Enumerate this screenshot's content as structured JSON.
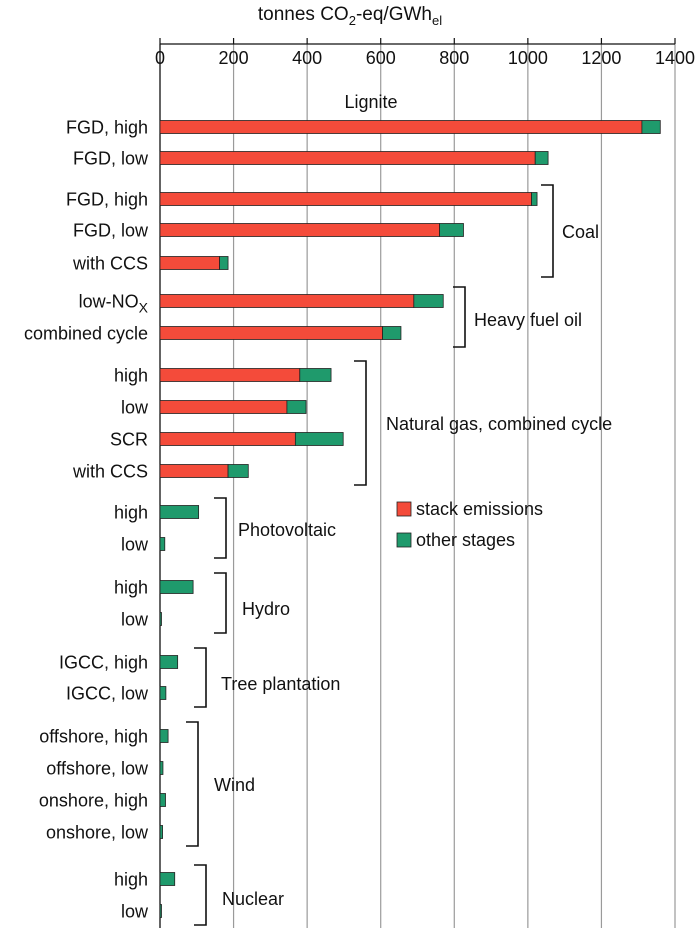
{
  "chart_data": {
    "type": "bar",
    "orientation": "horizontal",
    "stacked": true,
    "title": "",
    "xlabel": "tonnes CO2-eq/GWhel",
    "xlabel_main": "tonnes CO",
    "xlabel_sub1": "2",
    "xlabel_mid": "-eq/GWh",
    "xlabel_sub2": "el",
    "xlim": [
      0,
      1400
    ],
    "xticks": [
      0,
      200,
      400,
      600,
      800,
      1000,
      1200,
      1400
    ],
    "grid": "vertical",
    "legend_position": "center-right",
    "series": [
      {
        "name": "stack emissions",
        "color": "#f44b3a"
      },
      {
        "name": "other stages",
        "color": "#1f9a6c"
      }
    ],
    "groups": [
      {
        "name": "Lignite",
        "items": [
          {
            "label": "FGD, high",
            "stack": 1310,
            "other": 50
          },
          {
            "label": "FGD, low",
            "stack": 1020,
            "other": 35
          }
        ]
      },
      {
        "name": "Coal",
        "items": [
          {
            "label": "FGD, high",
            "stack": 1010,
            "other": 15
          },
          {
            "label": "FGD, low",
            "stack": 760,
            "other": 65
          },
          {
            "label": "with CCS",
            "stack": 162,
            "other": 23
          }
        ]
      },
      {
        "name": "Heavy fuel oil",
        "items": [
          {
            "label": "low-NO",
            "label_sub": "X",
            "stack": 690,
            "other": 80
          },
          {
            "label": "combined cycle",
            "stack": 605,
            "other": 50
          }
        ]
      },
      {
        "name": "Natural gas, combined cycle",
        "items": [
          {
            "label": "high",
            "stack": 380,
            "other": 85
          },
          {
            "label": "low",
            "stack": 345,
            "other": 52
          },
          {
            "label": "SCR",
            "stack": 368,
            "other": 130
          },
          {
            "label": "with CCS",
            "stack": 185,
            "other": 55
          }
        ]
      },
      {
        "name": "Photovoltaic",
        "items": [
          {
            "label": "high",
            "stack": 0,
            "other": 105
          },
          {
            "label": "low",
            "stack": 0,
            "other": 13
          }
        ]
      },
      {
        "name": "Hydro",
        "items": [
          {
            "label": "high",
            "stack": 0,
            "other": 90
          },
          {
            "label": "low",
            "stack": 0,
            "other": 4
          }
        ]
      },
      {
        "name": "Tree plantation",
        "items": [
          {
            "label": "IGCC, high",
            "stack": 0,
            "other": 48
          },
          {
            "label": "IGCC, low",
            "stack": 0,
            "other": 16
          }
        ]
      },
      {
        "name": "Wind",
        "items": [
          {
            "label": "offshore, high",
            "stack": 0,
            "other": 22
          },
          {
            "label": "offshore, low",
            "stack": 0,
            "other": 8
          },
          {
            "label": "onshore, high",
            "stack": 0,
            "other": 15
          },
          {
            "label": "onshore, low",
            "stack": 0,
            "other": 7
          }
        ]
      },
      {
        "name": "Nuclear",
        "items": [
          {
            "label": "high",
            "stack": 0,
            "other": 40
          },
          {
            "label": "low",
            "stack": 0,
            "other": 4
          }
        ]
      }
    ]
  }
}
